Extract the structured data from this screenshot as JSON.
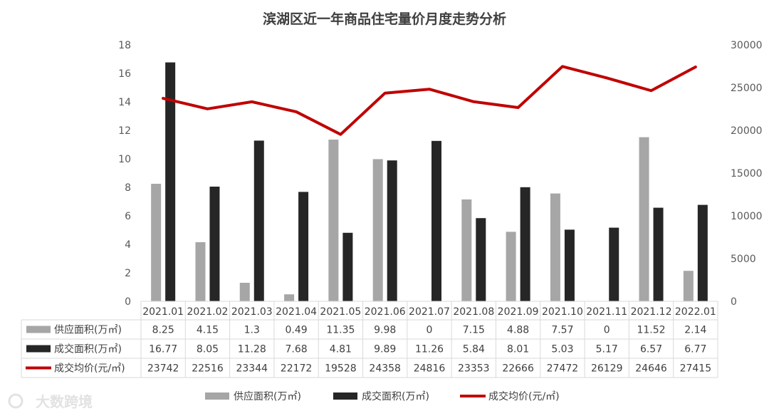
{
  "chart_data": {
    "type": "bar",
    "title": "滨湖区近一年商品住宅量价月度走势分析",
    "categories": [
      "2021.01",
      "2021.02",
      "2021.03",
      "2021.04",
      "2021.05",
      "2021.06",
      "2021.07",
      "2021.08",
      "2021.09",
      "2021.10",
      "2021.11",
      "2021.12",
      "2022.01"
    ],
    "series": [
      {
        "name": "供应面积(万㎡)",
        "kind": "bar",
        "axis": "left",
        "color": "#a6a6a6",
        "values": [
          8.25,
          4.15,
          1.3,
          0.49,
          11.35,
          9.98,
          0,
          7.15,
          4.88,
          7.57,
          0,
          11.52,
          2.14
        ]
      },
      {
        "name": "成交面积(万㎡)",
        "kind": "bar",
        "axis": "left",
        "color": "#262626",
        "values": [
          16.77,
          8.05,
          11.28,
          7.68,
          4.81,
          9.89,
          11.26,
          5.84,
          8.01,
          5.03,
          5.17,
          6.57,
          6.77
        ]
      },
      {
        "name": "成交均价(元/㎡)",
        "kind": "line",
        "axis": "right",
        "color": "#c00000",
        "values": [
          23742,
          22516,
          23344,
          22172,
          19528,
          24358,
          24816,
          23353,
          22666,
          27472,
          26129,
          24646,
          27415
        ]
      }
    ],
    "y_left": {
      "min": 0,
      "max": 18,
      "ticks": [
        "0",
        "2",
        "4",
        "6",
        "8",
        "10",
        "12",
        "14",
        "16",
        "18"
      ]
    },
    "y_right": {
      "min": 0,
      "max": 30000,
      "ticks": [
        "0",
        "5000",
        "10000",
        "15000",
        "20000",
        "25000",
        "30000"
      ]
    },
    "data_table": {
      "rows": [
        [
          "8.25",
          "4.15",
          "1.3",
          "0.49",
          "11.35",
          "9.98",
          "0",
          "7.15",
          "4.88",
          "7.57",
          "0",
          "11.52",
          "2.14"
        ],
        [
          "16.77",
          "8.05",
          "11.28",
          "7.68",
          "4.81",
          "9.89",
          "11.26",
          "5.84",
          "8.01",
          "5.03",
          "5.17",
          "6.57",
          "6.77"
        ],
        [
          "23742",
          "22516",
          "23344",
          "22172",
          "19528",
          "24358",
          "24816",
          "23353",
          "22666",
          "27472",
          "26129",
          "24646",
          "27415"
        ]
      ]
    },
    "legend_position": "bottom",
    "grid": false
  },
  "watermark": "大数跨境"
}
